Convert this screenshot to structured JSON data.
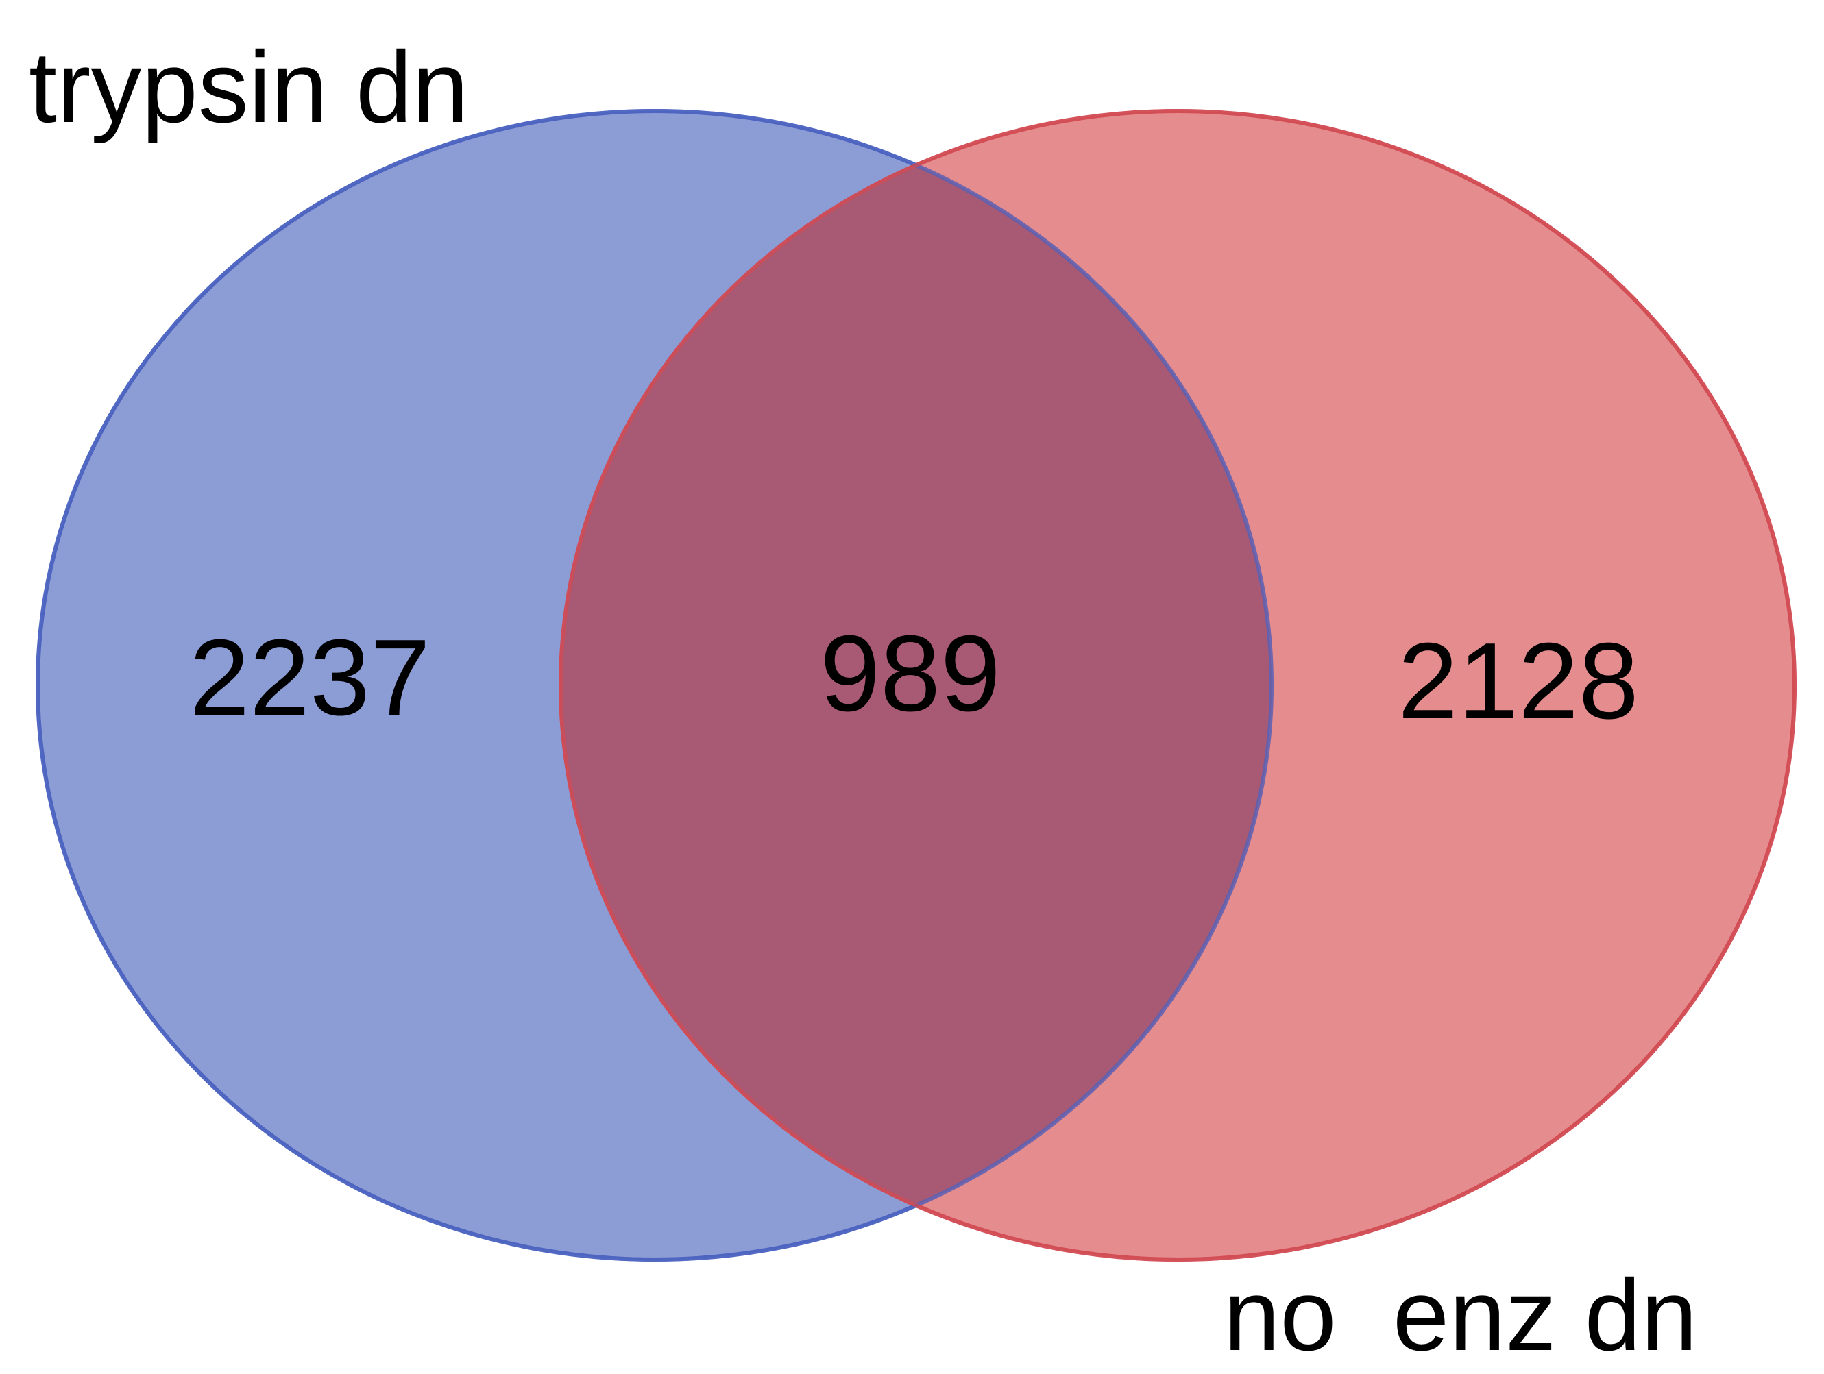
{
  "diagram": {
    "type": "venn2",
    "sets": [
      {
        "label": "trypsin dn",
        "fill": "#6b80c8",
        "stroke": "#4a62c0"
      },
      {
        "label": "no  enz dn",
        "fill": "#dc6b6e",
        "stroke": "#d24a52"
      }
    ],
    "regions": {
      "only_a": "2237",
      "intersection": "989",
      "only_b": "2128"
    },
    "intersection_fill": "#a85a75"
  }
}
